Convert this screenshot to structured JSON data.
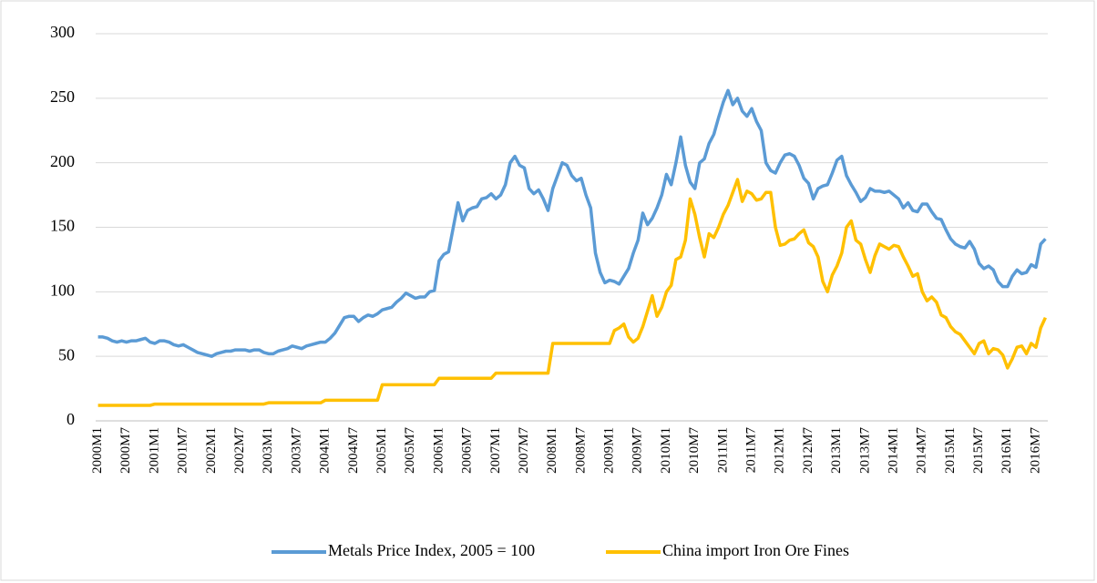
{
  "chart_data": {
    "type": "line",
    "categories": [
      "2000M1",
      null,
      null,
      null,
      null,
      null,
      "2000M7",
      null,
      null,
      null,
      null,
      null,
      "2001M1",
      null,
      null,
      null,
      null,
      null,
      "2001M7",
      null,
      null,
      null,
      null,
      null,
      "2002M1",
      null,
      null,
      null,
      null,
      null,
      "2002M7",
      null,
      null,
      null,
      null,
      null,
      "2003M1",
      null,
      null,
      null,
      null,
      null,
      "2003M7",
      null,
      null,
      null,
      null,
      null,
      "2004M1",
      null,
      null,
      null,
      null,
      null,
      "2004M7",
      null,
      null,
      null,
      null,
      null,
      "2005M1",
      null,
      null,
      null,
      null,
      null,
      "2005M7",
      null,
      null,
      null,
      null,
      null,
      "2006M1",
      null,
      null,
      null,
      null,
      null,
      "2006M7",
      null,
      null,
      null,
      null,
      null,
      "2007M1",
      null,
      null,
      null,
      null,
      null,
      "2007M7",
      null,
      null,
      null,
      null,
      null,
      "2008M1",
      null,
      null,
      null,
      null,
      null,
      "2008M7",
      null,
      null,
      null,
      null,
      null,
      "2009M1",
      null,
      null,
      null,
      null,
      null,
      "2009M7",
      null,
      null,
      null,
      null,
      null,
      "2010M1",
      null,
      null,
      null,
      null,
      null,
      "2010M7",
      null,
      null,
      null,
      null,
      null,
      "2011M1",
      null,
      null,
      null,
      null,
      null,
      "2011M7",
      null,
      null,
      null,
      null,
      null,
      "2012M1",
      null,
      null,
      null,
      null,
      null,
      "2012M7",
      null,
      null,
      null,
      null,
      null,
      "2013M1",
      null,
      null,
      null,
      null,
      null,
      "2013M7",
      null,
      null,
      null,
      null,
      null,
      "2014M1",
      null,
      null,
      null,
      null,
      null,
      "2014M7",
      null,
      null,
      null,
      null,
      null,
      "2015M1",
      null,
      null,
      null,
      null,
      null,
      "2015M7",
      null,
      null,
      null,
      null,
      null,
      "2016M1",
      null,
      null,
      null,
      null,
      null,
      "2016M7",
      null,
      null
    ],
    "series": [
      {
        "name": "Metals Price Index, 2005 = 100",
        "color": "#5b9bd5",
        "values": [
          65,
          65,
          64,
          62,
          61,
          62,
          61,
          62,
          62,
          63,
          64,
          61,
          60,
          62,
          62,
          61,
          59,
          58,
          59,
          57,
          55,
          53,
          52,
          51,
          50,
          52,
          53,
          54,
          54,
          55,
          55,
          55,
          54,
          55,
          55,
          53,
          52,
          52,
          54,
          55,
          56,
          58,
          57,
          56,
          58,
          59,
          60,
          61,
          61,
          64,
          68,
          74,
          80,
          81,
          81,
          77,
          80,
          82,
          81,
          83,
          86,
          87,
          88,
          92,
          95,
          99,
          97,
          95,
          96,
          96,
          100,
          101,
          124,
          129,
          131,
          150,
          169,
          155,
          163,
          165,
          166,
          172,
          173,
          176,
          172,
          175,
          183,
          200,
          205,
          198,
          196,
          180,
          176,
          179,
          172,
          163,
          180,
          190,
          200,
          198,
          190,
          186,
          188,
          175,
          165,
          130,
          115,
          107,
          109,
          108,
          106,
          112,
          118,
          130,
          140,
          161,
          152,
          157,
          165,
          175,
          191,
          183,
          200,
          220,
          198,
          185,
          180,
          200,
          203,
          215,
          222,
          235,
          247,
          256,
          245,
          250,
          240,
          236,
          242,
          232,
          225,
          200,
          194,
          192,
          200,
          206,
          207,
          205,
          198,
          188,
          184,
          172,
          180,
          182,
          183,
          192,
          202,
          205,
          190,
          183,
          177,
          170,
          173,
          180,
          178,
          178,
          177,
          178,
          175,
          172,
          165,
          169,
          163,
          162,
          168,
          168,
          162,
          157,
          156,
          148,
          141,
          137,
          135,
          134,
          139,
          133,
          122,
          118,
          120,
          117,
          108,
          104,
          104,
          112,
          117,
          114,
          115,
          121,
          119,
          137,
          141
        ]
      },
      {
        "name": "China import Iron Ore Fines",
        "color": "#ffc000",
        "values": [
          12,
          12,
          12,
          12,
          12,
          12,
          12,
          12,
          12,
          12,
          12,
          12,
          13,
          13,
          13,
          13,
          13,
          13,
          13,
          13,
          13,
          13,
          13,
          13,
          13,
          13,
          13,
          13,
          13,
          13,
          13,
          13,
          13,
          13,
          13,
          13,
          14,
          14,
          14,
          14,
          14,
          14,
          14,
          14,
          14,
          14,
          14,
          14,
          16,
          16,
          16,
          16,
          16,
          16,
          16,
          16,
          16,
          16,
          16,
          16,
          28,
          28,
          28,
          28,
          28,
          28,
          28,
          28,
          28,
          28,
          28,
          28,
          33,
          33,
          33,
          33,
          33,
          33,
          33,
          33,
          33,
          33,
          33,
          33,
          37,
          37,
          37,
          37,
          37,
          37,
          37,
          37,
          37,
          37,
          37,
          37,
          60,
          60,
          60,
          60,
          60,
          60,
          60,
          60,
          60,
          60,
          60,
          60,
          60,
          70,
          72,
          75,
          65,
          61,
          64,
          73,
          85,
          97,
          81,
          88,
          100,
          105,
          125,
          127,
          140,
          172,
          160,
          142,
          127,
          145,
          142,
          150,
          160,
          167,
          177,
          187,
          170,
          178,
          176,
          171,
          172,
          177,
          177,
          150,
          136,
          137,
          140,
          141,
          145,
          148,
          138,
          135,
          127,
          108,
          100,
          113,
          120,
          130,
          150,
          155,
          140,
          137,
          125,
          115,
          128,
          137,
          135,
          133,
          136,
          135,
          127,
          120,
          112,
          114,
          100,
          93,
          96,
          92,
          82,
          80,
          73,
          69,
          67,
          62,
          57,
          52,
          60,
          62,
          52,
          56,
          55,
          51,
          41,
          48,
          57,
          58,
          52,
          60,
          57,
          72,
          80
        ]
      }
    ],
    "ylim": [
      0,
      300
    ],
    "yticks": [
      0,
      50,
      100,
      150,
      200,
      250,
      300
    ],
    "grid": true,
    "legend": "bottom"
  }
}
